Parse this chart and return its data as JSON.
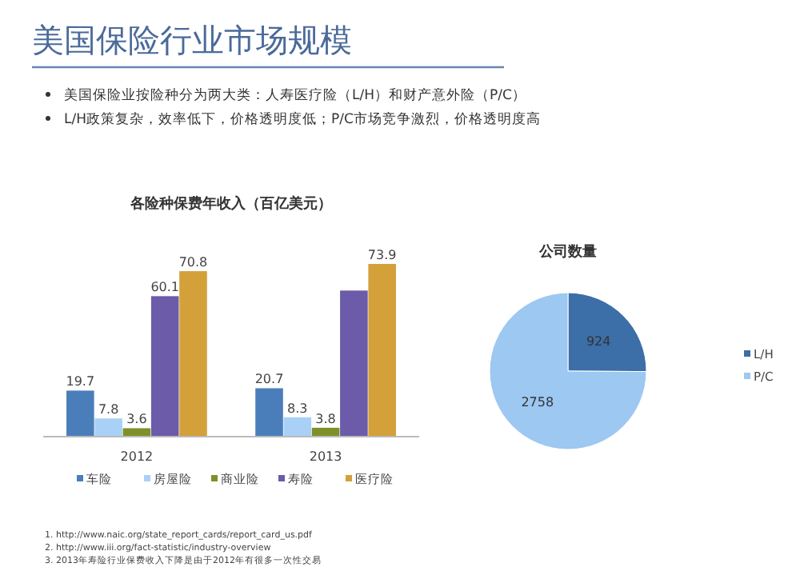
{
  "chart_data": [
    {
      "type": "other",
      "title": "美国保险行业市场规模",
      "annotations": [
        "美国保险业按险种分为两大类：人寿医疗险（L/H）和财产意外险（P/C）",
        "L/H政策复杂，效率低下，价格透明度低；P/C市场竞争激烈，价格透明度高",
        "1.   http://www.naic.org/state_report_cards/report_card_us.pdf",
        "2.   http://www.iii.org/fact-statistic/industry-overview",
        "3.   2013年寿险行业保费收入下降是由于2012年有很多一次性交易"
      ]
    },
    {
      "type": "bar",
      "title": "各险种保费年收入（百亿美元）",
      "categories": [
        "2012",
        "2013"
      ],
      "legend": "bottom",
      "series": [
        {
          "name": "车险",
          "color": "#4a7ebb",
          "values": [
            19.7,
            20.7
          ],
          "value_labels": [
            "19.7",
            "20.7"
          ]
        },
        {
          "name": "房屋险",
          "color": "#a9d1f7",
          "values": [
            7.8,
            8.3
          ],
          "value_labels": [
            "7.8",
            "8.3"
          ]
        },
        {
          "name": "商业险",
          "color": "#7f8f2a",
          "values": [
            3.6,
            3.8
          ],
          "value_labels": [
            "3.6",
            "3.8"
          ]
        },
        {
          "name": "寿险",
          "color": "#6b5ba8",
          "values": [
            60.1,
            62.5
          ],
          "value_labels": [
            "60.1",
            null
          ]
        },
        {
          "name": "医疗险",
          "color": "#d4a03a",
          "values": [
            70.8,
            73.9
          ],
          "value_labels": [
            "70.8",
            "73.9"
          ]
        }
      ]
    },
    {
      "type": "pie",
      "title": "公司数量",
      "categories": [
        "L/H",
        "P/C"
      ],
      "values": [
        924,
        2758
      ],
      "colors": [
        "#3c6ea8",
        "#9cc8f2"
      ],
      "data_labels": true,
      "legend": "right"
    }
  ]
}
